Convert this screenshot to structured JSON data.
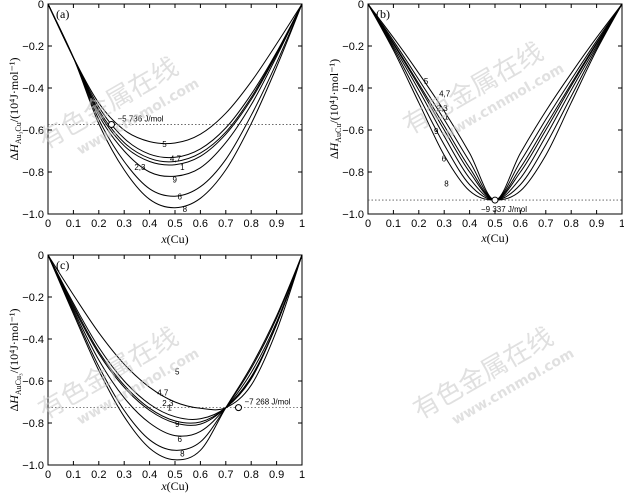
{
  "watermark": {
    "cn": "有色金属在线",
    "url": "www.cnnmol.com"
  },
  "chart_data": [
    {
      "type": "line",
      "panel_label": "(a)",
      "xlabel_var": "x",
      "xlabel_unit": "(Cu)",
      "ylabel_delta": "ΔH",
      "ylabel_sub": "Au₃Cu",
      "ylabel_unit": "/(10⁴J·mol⁻¹)",
      "xlim": [
        0,
        1
      ],
      "ylim": [
        -1.0,
        0
      ],
      "xticks": [
        0,
        0.1,
        0.2,
        0.3,
        0.4,
        0.5,
        0.6,
        0.7,
        0.8,
        0.9,
        1
      ],
      "xtick_labels": [
        "0",
        "0.1",
        "0.2",
        "0.3",
        "0.4",
        "0.5",
        "0.6",
        "0.7",
        "0.8",
        "0.9",
        "1"
      ],
      "yticks": [
        0,
        -0.2,
        -0.4,
        -0.6,
        -0.8,
        -1.0
      ],
      "ytick_labels": [
        "0",
        "−0.2",
        "−0.4",
        "−0.6",
        "−0.8",
        "−1.0"
      ],
      "reference": {
        "x": 0.25,
        "y": -0.5736,
        "label": "−5 736 J/mol"
      },
      "series": [
        {
          "name": "5",
          "values": [
            0,
            -0.255,
            -0.472,
            -0.6,
            -0.655,
            -0.662,
            -0.62,
            -0.52,
            -0.37,
            -0.19,
            0
          ],
          "label_at": [
            0.45,
            -0.68
          ]
        },
        {
          "name": "4,7",
          "values": [
            0,
            -0.255,
            -0.49,
            -0.64,
            -0.715,
            -0.73,
            -0.69,
            -0.59,
            -0.43,
            -0.23,
            0
          ],
          "label_at": [
            0.48,
            -0.75
          ]
        },
        {
          "name": "2,3",
          "values": [
            0,
            -0.255,
            -0.505,
            -0.66,
            -0.735,
            -0.75,
            -0.71,
            -0.61,
            -0.445,
            -0.235,
            0
          ],
          "label_at": [
            0.34,
            -0.79
          ]
        },
        {
          "name": "1",
          "values": [
            0,
            -0.255,
            -0.515,
            -0.675,
            -0.75,
            -0.765,
            -0.725,
            -0.62,
            -0.455,
            -0.24,
            0
          ],
          "label_at": [
            0.52,
            -0.79
          ]
        },
        {
          "name": "9",
          "values": [
            0,
            -0.255,
            -0.53,
            -0.7,
            -0.8,
            -0.82,
            -0.78,
            -0.66,
            -0.48,
            -0.25,
            0
          ],
          "label_at": [
            0.49,
            -0.85
          ]
        },
        {
          "name": "6",
          "values": [
            0,
            -0.255,
            -0.55,
            -0.75,
            -0.88,
            -0.915,
            -0.87,
            -0.74,
            -0.53,
            -0.28,
            0
          ],
          "label_at": [
            0.51,
            -0.93
          ]
        },
        {
          "name": "8",
          "values": [
            0,
            -0.255,
            -0.57,
            -0.79,
            -0.93,
            -0.97,
            -0.925,
            -0.79,
            -0.57,
            -0.3,
            0
          ],
          "label_at": [
            0.53,
            -0.99
          ]
        }
      ]
    },
    {
      "type": "line",
      "panel_label": "(b)",
      "xlabel_var": "x",
      "xlabel_unit": "(Cu)",
      "ylabel_delta": "ΔH",
      "ylabel_sub": "AuCu",
      "ylabel_unit": "/(10⁴J·mol⁻¹)",
      "xlim": [
        0,
        1
      ],
      "ylim": [
        -1.0,
        0
      ],
      "xticks": [
        0,
        0.1,
        0.2,
        0.3,
        0.4,
        0.5,
        0.6,
        0.7,
        0.8,
        0.9,
        1
      ],
      "xtick_labels": [
        "0",
        "0.1",
        "0.2",
        "0.3",
        "0.4",
        "0.5",
        "0.6",
        "0.7",
        "0.8",
        "0.9",
        "1"
      ],
      "yticks": [
        0,
        -0.2,
        -0.4,
        -0.6,
        -0.8,
        -1.0
      ],
      "ytick_labels": [
        "0",
        "−0.2",
        "−0.4",
        "−0.6",
        "−0.8",
        "−1.0"
      ],
      "reference": {
        "x": 0.5,
        "y": -0.9337,
        "label": "−9 337 J/mol"
      },
      "series": [
        {
          "name": "5",
          "values": [
            0,
            -0.16,
            -0.33,
            -0.51,
            -0.71,
            -0.934,
            -0.71,
            -0.51,
            -0.33,
            -0.16,
            0
          ],
          "label_at": [
            0.22,
            -0.38
          ]
        },
        {
          "name": "4,7",
          "values": [
            0,
            -0.175,
            -0.36,
            -0.55,
            -0.75,
            -0.934,
            -0.75,
            -0.55,
            -0.36,
            -0.175,
            0
          ],
          "label_at": [
            0.28,
            -0.44
          ]
        },
        {
          "name": "2,3",
          "values": [
            0,
            -0.185,
            -0.38,
            -0.58,
            -0.78,
            -0.934,
            -0.78,
            -0.58,
            -0.38,
            -0.185,
            0
          ],
          "label_at": [
            0.27,
            -0.51
          ]
        },
        {
          "name": "1",
          "values": [
            0,
            -0.19,
            -0.39,
            -0.6,
            -0.8,
            -0.934,
            -0.8,
            -0.6,
            -0.39,
            -0.19,
            0
          ],
          "label_at": [
            0.3,
            -0.55
          ]
        },
        {
          "name": "9",
          "values": [
            0,
            -0.2,
            -0.41,
            -0.63,
            -0.83,
            -0.934,
            -0.83,
            -0.63,
            -0.41,
            -0.2,
            0
          ],
          "label_at": [
            0.26,
            -0.62
          ]
        },
        {
          "name": "6",
          "values": [
            0,
            -0.21,
            -0.44,
            -0.67,
            -0.86,
            -0.934,
            -0.86,
            -0.67,
            -0.44,
            -0.21,
            0
          ],
          "label_at": [
            0.29,
            -0.75
          ]
        },
        {
          "name": "8",
          "values": [
            0,
            -0.22,
            -0.47,
            -0.72,
            -0.89,
            -0.934,
            -0.89,
            -0.72,
            -0.47,
            -0.22,
            0
          ],
          "label_at": [
            0.3,
            -0.87
          ]
        }
      ]
    },
    {
      "type": "line",
      "panel_label": "(c)",
      "xlabel_var": "x",
      "xlabel_unit": "(Cu)",
      "ylabel_delta": "ΔH",
      "ylabel_sub": "AuCu₃",
      "ylabel_unit": "/(10⁴J·mol⁻¹)",
      "xlim": [
        0,
        1
      ],
      "ylim": [
        -1.0,
        0
      ],
      "xticks": [
        0,
        0.1,
        0.2,
        0.3,
        0.4,
        0.5,
        0.6,
        0.7,
        0.8,
        0.9,
        1
      ],
      "xtick_labels": [
        "0",
        "0.1",
        "0.2",
        "0.3",
        "0.4",
        "0.5",
        "0.6",
        "0.7",
        "0.8",
        "0.9",
        "1"
      ],
      "yticks": [
        0,
        -0.2,
        -0.4,
        -0.6,
        -0.8,
        -1.0
      ],
      "ytick_labels": [
        "0",
        "−0.2",
        "−0.4",
        "−0.6",
        "−0.8",
        "−1.0"
      ],
      "reference": {
        "x": 0.75,
        "y": -0.7268,
        "label": "−7 268 J/mol"
      },
      "series": [
        {
          "name": "5",
          "values": [
            0,
            -0.19,
            -0.37,
            -0.52,
            -0.63,
            -0.7,
            -0.73,
            -0.727,
            -0.62,
            -0.36,
            0
          ],
          "label_at": [
            0.5,
            -0.57
          ]
        },
        {
          "name": "4,7",
          "values": [
            0,
            -0.23,
            -0.44,
            -0.6,
            -0.71,
            -0.77,
            -0.78,
            -0.727,
            -0.59,
            -0.33,
            0
          ],
          "label_at": [
            0.43,
            -0.67
          ]
        },
        {
          "name": "2,3",
          "values": [
            0,
            -0.24,
            -0.46,
            -0.62,
            -0.73,
            -0.79,
            -0.795,
            -0.727,
            -0.585,
            -0.33,
            0
          ],
          "label_at": [
            0.45,
            -0.72
          ]
        },
        {
          "name": "1",
          "values": [
            0,
            -0.25,
            -0.47,
            -0.63,
            -0.74,
            -0.8,
            -0.805,
            -0.727,
            -0.58,
            -0.33,
            0
          ],
          "label_at": [
            0.47,
            -0.74
          ]
        },
        {
          "name": "9",
          "values": [
            0,
            -0.26,
            -0.5,
            -0.68,
            -0.8,
            -0.86,
            -0.84,
            -0.727,
            -0.56,
            -0.32,
            0
          ],
          "label_at": [
            0.5,
            -0.82
          ]
        },
        {
          "name": "6",
          "values": [
            0,
            -0.27,
            -0.53,
            -0.74,
            -0.88,
            -0.93,
            -0.89,
            -0.727,
            -0.54,
            -0.3,
            0
          ],
          "label_at": [
            0.51,
            -0.89
          ]
        },
        {
          "name": "8",
          "values": [
            0,
            -0.28,
            -0.55,
            -0.77,
            -0.92,
            -0.975,
            -0.93,
            -0.727,
            -0.53,
            -0.29,
            0
          ],
          "label_at": [
            0.52,
            -0.96
          ]
        }
      ]
    }
  ]
}
